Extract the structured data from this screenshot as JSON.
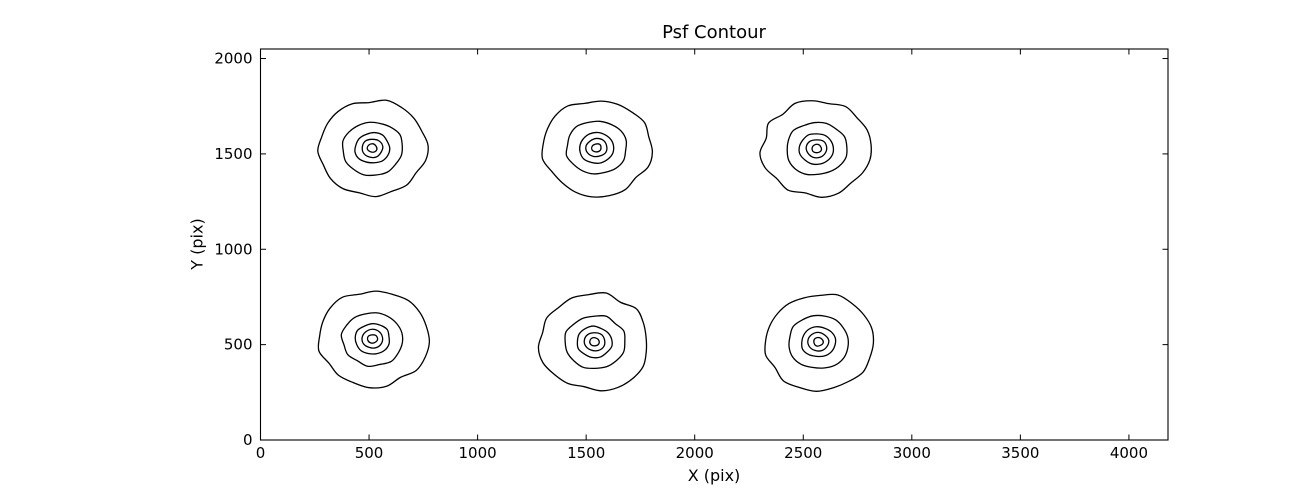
{
  "chart_data": {
    "type": "contour",
    "title": "Psf Contour",
    "xlabel": "X (pix)",
    "ylabel": "Y (pix)",
    "xlim": [
      0,
      4180
    ],
    "ylim": [
      0,
      2050
    ],
    "xticks": [
      0,
      500,
      1000,
      1500,
      2000,
      2500,
      3000,
      3500,
      4000
    ],
    "yticks": [
      0,
      500,
      1000,
      1500,
      2000
    ],
    "grid": false,
    "legend": "none",
    "tick_direction": "in",
    "line_color": "#000000",
    "background_color": "#ffffff",
    "levels_per_cluster": 5,
    "ring_radii_data_units": [
      250,
      140,
      80,
      48,
      22
    ],
    "clusters": [
      {
        "name": "psf-top-left",
        "cx": 515,
        "cy": 1530
      },
      {
        "name": "psf-top-center",
        "cx": 1548,
        "cy": 1532
      },
      {
        "name": "psf-top-right",
        "cx": 2562,
        "cy": 1528
      },
      {
        "name": "psf-bottom-left",
        "cx": 516,
        "cy": 530
      },
      {
        "name": "psf-bottom-center",
        "cx": 1539,
        "cy": 514
      },
      {
        "name": "psf-bottom-right",
        "cx": 2570,
        "cy": 515
      }
    ]
  }
}
